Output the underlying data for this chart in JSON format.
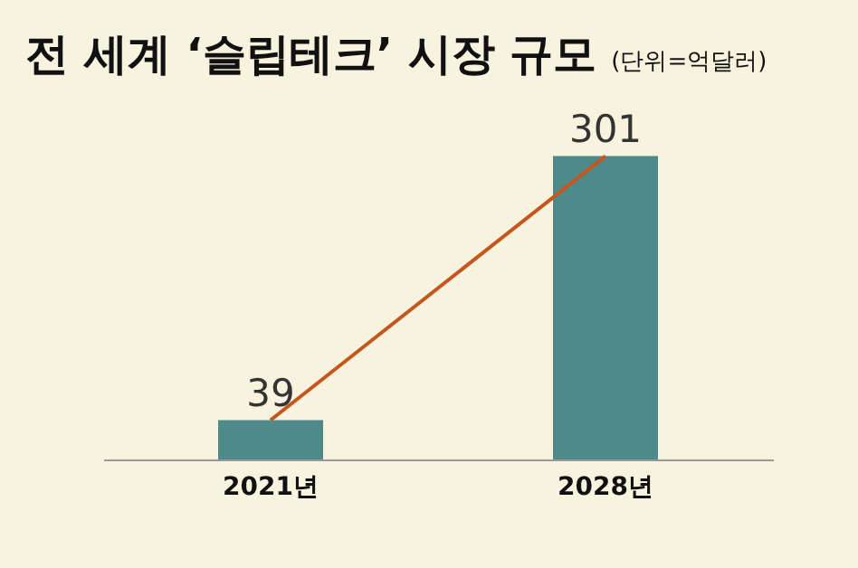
{
  "chart_data": {
    "type": "bar",
    "title": "전 세계 ‘슬립테크’ 시장 규모",
    "subtitle": "(단위=억달러)",
    "categories": [
      "2021년",
      "2028년"
    ],
    "series": [
      {
        "color": "#4f8a8b",
        "values": [
          39,
          301
        ],
        "value_labels": [
          "39",
          "301"
        ]
      },
      {
        "type": "line",
        "color": "#c4561e",
        "values": [
          39,
          301
        ]
      }
    ]
  }
}
